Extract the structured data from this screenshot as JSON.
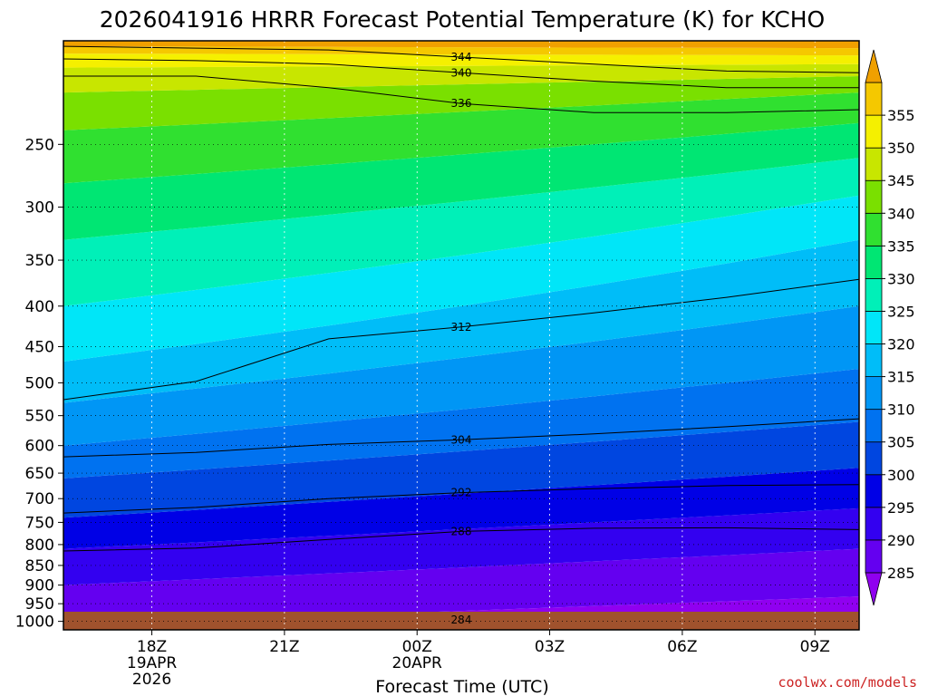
{
  "chart_data": {
    "type": "heatmap",
    "title": "2026041916 HRRR Forecast Potential Temperature (K) for KCHO",
    "xlabel": "Forecast Time (UTC)",
    "ylabel": "",
    "y_scale": "log",
    "y_inverted": true,
    "ylim": [
      1025,
      185
    ],
    "xlim": [
      "2026-04-19T16Z",
      "2026-04-20T10Z"
    ],
    "y_ticks": [
      250,
      300,
      350,
      400,
      450,
      500,
      550,
      600,
      650,
      700,
      750,
      800,
      850,
      900,
      950,
      1000
    ],
    "x_ticks": [
      {
        "time": "2026-04-19T18Z",
        "label": "18Z",
        "date": "19APR",
        "year": "2026"
      },
      {
        "time": "2026-04-19T21Z",
        "label": "21Z"
      },
      {
        "time": "2026-04-20T00Z",
        "label": "00Z",
        "date": "20APR"
      },
      {
        "time": "2026-04-20T03Z",
        "label": "03Z"
      },
      {
        "time": "2026-04-20T06Z",
        "label": "06Z"
      },
      {
        "time": "2026-04-20T09Z",
        "label": "09Z"
      }
    ],
    "grid": true,
    "colorbar": {
      "levels": [
        285,
        290,
        295,
        300,
        305,
        310,
        315,
        320,
        325,
        330,
        335,
        340,
        345,
        350,
        355
      ],
      "colors": [
        "#9000f0",
        "#6400f0",
        "#3300f0",
        "#0000e6",
        "#0046e0",
        "#0072f0",
        "#0096f5",
        "#00bdf8",
        "#00e6f8",
        "#00f0b8",
        "#00e673",
        "#30e030",
        "#7ae000",
        "#c8e600",
        "#f5f000",
        "#f5c800",
        "#f0a000"
      ]
    },
    "contours": [
      {
        "value": 284,
        "label": "284",
        "pressure": [
          1000,
          1000,
          998,
          996,
          998,
          1000,
          1000
        ]
      },
      {
        "value": 288,
        "label": "288",
        "pressure": [
          815,
          808,
          788,
          770,
          763,
          762,
          766
        ]
      },
      {
        "value": 292,
        "label": "292",
        "pressure": [
          730,
          718,
          700,
          688,
          680,
          674,
          672
        ]
      },
      {
        "value": 304,
        "label": "304",
        "pressure": [
          620,
          612,
          598,
          590,
          580,
          568,
          555
        ]
      },
      {
        "value": 312,
        "label": "312",
        "pressure": [
          525,
          498,
          440,
          425,
          408,
          390,
          370
        ]
      },
      {
        "value": 336,
        "label": "336",
        "pressure": [
          205,
          205,
          212,
          222,
          228,
          228,
          226
        ]
      },
      {
        "value": 340,
        "label": "340",
        "pressure": [
          195,
          196,
          198,
          203,
          208,
          212,
          212
        ]
      },
      {
        "value": 344,
        "label": "344",
        "pressure": [
          188,
          189,
          190,
          194,
          198,
          202,
          203
        ]
      }
    ],
    "contour_times": [
      "2026-04-19T16Z",
      "2026-04-19T19Z",
      "2026-04-19T22Z",
      "2026-04-20T01Z",
      "2026-04-20T04Z",
      "2026-04-20T07Z",
      "2026-04-20T10Z"
    ],
    "ground_color": "#a0522d"
  },
  "credit": "coolwx.com/models"
}
